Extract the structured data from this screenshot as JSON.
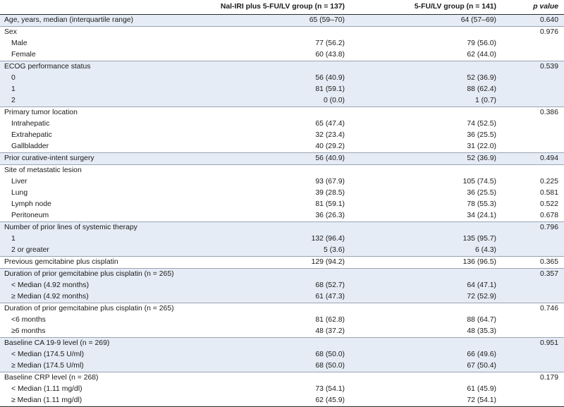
{
  "table": {
    "headers": [
      "",
      "Nal-IRI plus 5-FU/LV group (n = 137)",
      "5-FU/LV group (n = 141)",
      "p value"
    ],
    "rows": [
      {
        "label": "Age, years, median (interquartile range)",
        "a": "65 (59–70)",
        "b": "64 (57–69)",
        "p": "0.640",
        "shaded": true,
        "indent": false,
        "group_end": true
      },
      {
        "label": "Sex",
        "a": "",
        "b": "",
        "p": "0.976",
        "shaded": false,
        "indent": false,
        "group_end": false
      },
      {
        "label": "Male",
        "a": "77 (56.2)",
        "b": "79 (56.0)",
        "p": "",
        "shaded": false,
        "indent": true,
        "group_end": false
      },
      {
        "label": "Female",
        "a": "60 (43.8)",
        "b": "62 (44.0)",
        "p": "",
        "shaded": false,
        "indent": true,
        "group_end": true
      },
      {
        "label": "ECOG performance status",
        "a": "",
        "b": "",
        "p": "0.539",
        "shaded": true,
        "indent": false,
        "group_end": false
      },
      {
        "label": "0",
        "a": "56 (40.9)",
        "b": "52 (36.9)",
        "p": "",
        "shaded": true,
        "indent": true,
        "group_end": false
      },
      {
        "label": "1",
        "a": "81 (59.1)",
        "b": "88 (62.4)",
        "p": "",
        "shaded": true,
        "indent": true,
        "group_end": false
      },
      {
        "label": "2",
        "a": "0 (0.0)",
        "b": "1 (0.7)",
        "p": "",
        "shaded": true,
        "indent": true,
        "group_end": true
      },
      {
        "label": "Primary tumor location",
        "a": "",
        "b": "",
        "p": "0.386",
        "shaded": false,
        "indent": false,
        "group_end": false
      },
      {
        "label": "Intrahepatic",
        "a": "65 (47.4)",
        "b": "74 (52.5)",
        "p": "",
        "shaded": false,
        "indent": true,
        "group_end": false
      },
      {
        "label": "Extrahepatic",
        "a": "32 (23.4)",
        "b": "36 (25.5)",
        "p": "",
        "shaded": false,
        "indent": true,
        "group_end": false
      },
      {
        "label": "Gallbladder",
        "a": "40 (29.2)",
        "b": "31 (22.0)",
        "p": "",
        "shaded": false,
        "indent": true,
        "group_end": true
      },
      {
        "label": "Prior curative-intent surgery",
        "a": "56 (40.9)",
        "b": "52 (36.9)",
        "p": "0.494",
        "shaded": true,
        "indent": false,
        "group_end": true
      },
      {
        "label": "Site of metastatic lesion",
        "a": "",
        "b": "",
        "p": "",
        "shaded": false,
        "indent": false,
        "group_end": false
      },
      {
        "label": "Liver",
        "a": "93 (67.9)",
        "b": "105 (74.5)",
        "p": "0.225",
        "shaded": false,
        "indent": true,
        "group_end": false
      },
      {
        "label": "Lung",
        "a": "39 (28.5)",
        "b": "36 (25.5)",
        "p": "0.581",
        "shaded": false,
        "indent": true,
        "group_end": false
      },
      {
        "label": "Lymph node",
        "a": "81 (59.1)",
        "b": "78 (55.3)",
        "p": "0.522",
        "shaded": false,
        "indent": true,
        "group_end": false
      },
      {
        "label": "Peritoneum",
        "a": "36 (26.3)",
        "b": "34 (24.1)",
        "p": "0.678",
        "shaded": false,
        "indent": true,
        "group_end": true
      },
      {
        "label": "Number of prior lines of systemic therapy",
        "a": "",
        "b": "",
        "p": "0.796",
        "shaded": true,
        "indent": false,
        "group_end": false
      },
      {
        "label": "1",
        "a": "132 (96.4)",
        "b": "135 (95.7)",
        "p": "",
        "shaded": true,
        "indent": true,
        "group_end": false
      },
      {
        "label": "2 or greater",
        "a": "5 (3.6)",
        "b": "6 (4.3)",
        "p": "",
        "shaded": true,
        "indent": true,
        "group_end": true
      },
      {
        "label": "Previous gemcitabine plus cisplatin",
        "a": "129 (94.2)",
        "b": "136 (96.5)",
        "p": "0.365",
        "shaded": false,
        "indent": false,
        "group_end": true
      },
      {
        "label": "Duration of prior gemcitabine plus cisplatin (n = 265)",
        "a": "",
        "b": "",
        "p": "0.357",
        "shaded": true,
        "indent": false,
        "group_end": false
      },
      {
        "label": "< Median (4.92 months)",
        "a": "68 (52.7)",
        "b": "64 (47.1)",
        "p": "",
        "shaded": true,
        "indent": true,
        "group_end": false
      },
      {
        "label": "≥ Median (4.92 months)",
        "a": "61 (47.3)",
        "b": "72 (52.9)",
        "p": "",
        "shaded": true,
        "indent": true,
        "group_end": true
      },
      {
        "label": "Duration of prior gemcitabine plus cisplatin (n = 265)",
        "a": "",
        "b": "",
        "p": "0.746",
        "shaded": false,
        "indent": false,
        "group_end": false
      },
      {
        "label": "<6 months",
        "a": "81 (62.8)",
        "b": "88 (64.7)",
        "p": "",
        "shaded": false,
        "indent": true,
        "group_end": false
      },
      {
        "label": "≥6 months",
        "a": "48 (37.2)",
        "b": "48 (35.3)",
        "p": "",
        "shaded": false,
        "indent": true,
        "group_end": true
      },
      {
        "label": "Baseline CA 19-9 level (n = 269)",
        "a": "",
        "b": "",
        "p": "0.951",
        "shaded": true,
        "indent": false,
        "group_end": false
      },
      {
        "label": "< Median (174.5 U/ml)",
        "a": "68 (50.0)",
        "b": "66 (49.6)",
        "p": "",
        "shaded": true,
        "indent": true,
        "group_end": false
      },
      {
        "label": "≥ Median (174.5 U/ml)",
        "a": "68 (50.0)",
        "b": "67 (50.4)",
        "p": "",
        "shaded": true,
        "indent": true,
        "group_end": true
      },
      {
        "label": "Baseline CRP level (n = 268)",
        "a": "",
        "b": "",
        "p": "0.179",
        "shaded": false,
        "indent": false,
        "group_end": false
      },
      {
        "label": "< Median (1.11 mg/dl)",
        "a": "73 (54.1)",
        "b": "61 (45.9)",
        "p": "",
        "shaded": false,
        "indent": true,
        "group_end": false
      },
      {
        "label": "≥ Median (1.11 mg/dl)",
        "a": "62 (45.9)",
        "b": "72 (54.1)",
        "p": "",
        "shaded": false,
        "indent": true,
        "group_end": false
      }
    ]
  }
}
